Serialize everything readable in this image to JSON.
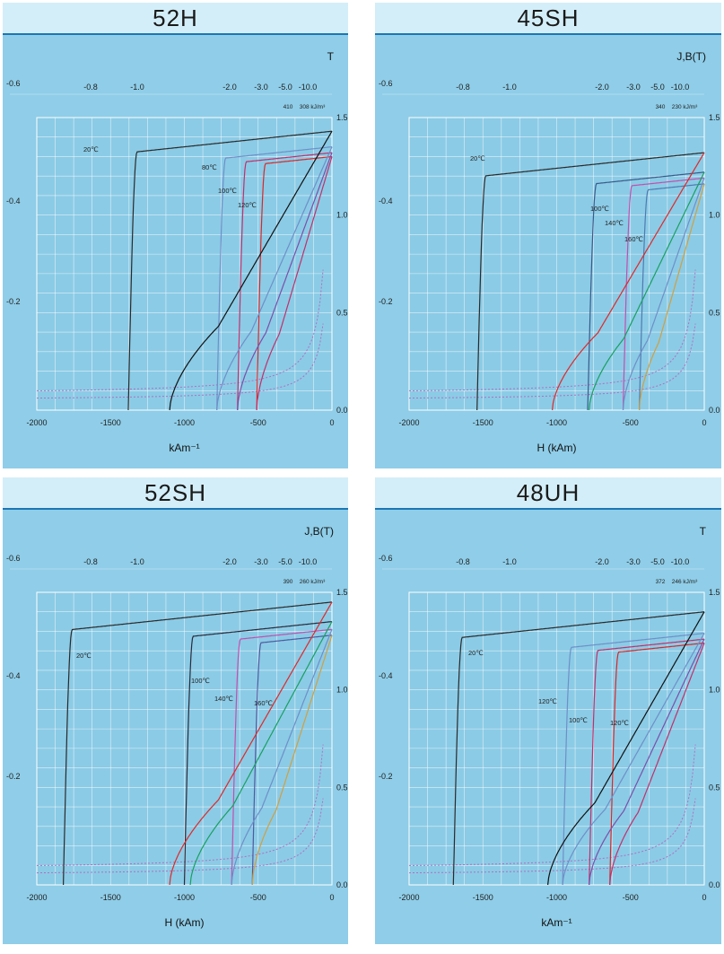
{
  "charts": [
    {
      "title": "52H",
      "unit_label": "T",
      "xlabel": "kAm⁻¹",
      "temp_labels": [
        "20℃",
        "80℃",
        "100℃",
        "120℃"
      ],
      "energy_labels": [
        "410",
        "308 kJ/m³"
      ]
    },
    {
      "title": "45SH",
      "unit_label": "J,B(T)",
      "xlabel": "H (kAm)",
      "temp_labels": [
        "20℃",
        "100℃",
        "140℃",
        "160℃"
      ],
      "energy_labels": [
        "340",
        "230 kJ/m³"
      ]
    },
    {
      "title": "52SH",
      "unit_label": "J,B(T)",
      "xlabel": "H (kAm)",
      "temp_labels": [
        "20℃",
        "100℃",
        "140℃",
        "160℃"
      ],
      "energy_labels": [
        "390",
        "260 kJ/m³"
      ]
    },
    {
      "title": "48UH",
      "unit_label": "T",
      "xlabel": "kAm⁻¹",
      "temp_labels": [
        "20℃",
        "120℃",
        "100℃",
        "120℃"
      ],
      "energy_labels": [
        "372",
        "246 kJ/m³"
      ]
    }
  ],
  "axes": {
    "x_ticks": [
      "-2000",
      "-1500",
      "-1000",
      "-500",
      "0"
    ],
    "right_ticks": [
      "0.0",
      "0.5",
      "1.0",
      "1.5"
    ],
    "left_ticks": [
      "-0.6",
      "-0.4",
      "-0.2"
    ],
    "top_ticks": [
      "-0.8",
      "-1.0",
      "-2.0",
      "-3.0",
      "-5.0",
      "-10.0"
    ]
  },
  "chart_data": [
    {
      "type": "line",
      "title": "52H",
      "xlabel": "kAm⁻¹",
      "ylabel": "T",
      "xlim": [
        -2000,
        0
      ],
      "ylim": [
        0,
        1.5
      ],
      "grid": true,
      "series": [
        {
          "name": "20℃",
          "color": "#2a2a2a",
          "kind": "J",
          "Br": 1.43,
          "Hc": -1380,
          "slope": 8e-05
        },
        {
          "name": "80℃",
          "color": "#6f8fc8",
          "kind": "J",
          "Br": 1.35,
          "Hc": -780,
          "slope": 8e-05
        },
        {
          "name": "100℃",
          "color": "#c0306c",
          "kind": "J",
          "Br": 1.32,
          "Hc": -640,
          "slope": 8e-05
        },
        {
          "name": "120℃",
          "color": "#d82828",
          "kind": "J",
          "Br": 1.3,
          "Hc": -510,
          "slope": 8e-05
        },
        {
          "name": "B 20℃",
          "color": "#111111",
          "kind": "B",
          "Br": 1.43,
          "Hc": -1100
        },
        {
          "name": "B 80℃",
          "color": "#6f8fc8",
          "kind": "B",
          "Br": 1.35,
          "Hc": -780
        },
        {
          "name": "B 100℃",
          "color": "#7b4faa",
          "kind": "B",
          "Br": 1.32,
          "Hc": -640
        },
        {
          "name": "B 120℃",
          "color": "#c0306c",
          "kind": "B",
          "Br": 1.3,
          "Hc": -510
        }
      ],
      "energy_lines": [
        {
          "label": "410",
          "color": "#b070c0",
          "k": 0.12,
          "off": 0
        },
        {
          "label": "308 kJ/m³",
          "color": "#b070c0",
          "k": 0.09,
          "off": 0
        }
      ]
    },
    {
      "type": "line",
      "title": "45SH",
      "xlabel": "H (kAm)",
      "ylabel": "J,B(T)",
      "xlim": [
        -2000,
        0
      ],
      "ylim": [
        0,
        1.5
      ],
      "grid": true,
      "series": [
        {
          "name": "20℃",
          "color": "#2a2a2a",
          "kind": "J",
          "Br": 1.32,
          "Hc": -1540,
          "slope": 8e-05
        },
        {
          "name": "100℃",
          "color": "#3a5a8a",
          "kind": "J",
          "Br": 1.22,
          "Hc": -790,
          "slope": 8e-05
        },
        {
          "name": "140℃",
          "color": "#c050b0",
          "kind": "J",
          "Br": 1.19,
          "Hc": -550,
          "slope": 8e-05
        },
        {
          "name": "160℃",
          "color": "#4f7ab0",
          "kind": "J",
          "Br": 1.16,
          "Hc": -440,
          "slope": 8e-05
        },
        {
          "name": "B 20℃",
          "color": "#e02828",
          "kind": "B",
          "Br": 1.32,
          "Hc": -1030
        },
        {
          "name": "B 100℃",
          "color": "#18a060",
          "kind": "B",
          "Br": 1.22,
          "Hc": -780
        },
        {
          "name": "B 140℃",
          "color": "#6f8fc8",
          "kind": "B",
          "Br": 1.19,
          "Hc": -550
        },
        {
          "name": "B 160℃",
          "color": "#d0a040",
          "kind": "B",
          "Br": 1.16,
          "Hc": -440
        }
      ],
      "energy_lines": [
        {
          "label": "340",
          "color": "#b070c0",
          "k": 0.12,
          "off": 0
        },
        {
          "label": "230 kJ/m³",
          "color": "#b070c0",
          "k": 0.09,
          "off": 0
        }
      ]
    },
    {
      "type": "line",
      "title": "52SH",
      "xlabel": "H (kAm)",
      "ylabel": "J,B(T)",
      "xlim": [
        -2000,
        0
      ],
      "ylim": [
        0,
        1.5
      ],
      "grid": true,
      "series": [
        {
          "name": "20℃",
          "color": "#2a2a2a",
          "kind": "J",
          "Br": 1.45,
          "Hc": -1820,
          "slope": 8e-05
        },
        {
          "name": "100℃",
          "color": "#2a2a3a",
          "kind": "J",
          "Br": 1.35,
          "Hc": -1000,
          "slope": 8e-05
        },
        {
          "name": "140℃",
          "color": "#c050b0",
          "kind": "J",
          "Br": 1.31,
          "Hc": -680,
          "slope": 8e-05
        },
        {
          "name": "160℃",
          "color": "#4f5aa0",
          "kind": "J",
          "Br": 1.28,
          "Hc": -540,
          "slope": 8e-05
        },
        {
          "name": "B 20℃",
          "color": "#e02828",
          "kind": "B",
          "Br": 1.45,
          "Hc": -1100
        },
        {
          "name": "B 100℃",
          "color": "#18a060",
          "kind": "B",
          "Br": 1.35,
          "Hc": -960
        },
        {
          "name": "B 140℃",
          "color": "#6f8fc8",
          "kind": "B",
          "Br": 1.31,
          "Hc": -680
        },
        {
          "name": "B 160℃",
          "color": "#d0a040",
          "kind": "B",
          "Br": 1.28,
          "Hc": -540
        }
      ],
      "energy_lines": [
        {
          "label": "390",
          "color": "#b070c0",
          "k": 0.12,
          "off": 0
        },
        {
          "label": "260 kJ/m³",
          "color": "#b070c0",
          "k": 0.09,
          "off": 0
        }
      ]
    },
    {
      "type": "line",
      "title": "48UH",
      "xlabel": "kAm⁻¹",
      "ylabel": "T",
      "xlim": [
        -2000,
        0
      ],
      "ylim": [
        0,
        1.5
      ],
      "grid": true,
      "series": [
        {
          "name": "20℃",
          "color": "#2a2a2a",
          "kind": "J",
          "Br": 1.4,
          "Hc": -1700,
          "slope": 8e-05
        },
        {
          "name": "120℃",
          "color": "#6f8fc8",
          "kind": "J",
          "Br": 1.29,
          "Hc": -960,
          "slope": 8e-05
        },
        {
          "name": "100℃",
          "color": "#c0306c",
          "kind": "J",
          "Br": 1.26,
          "Hc": -780,
          "slope": 8e-05
        },
        {
          "name": "120℃ ",
          "color": "#d82828",
          "kind": "J",
          "Br": 1.24,
          "Hc": -640,
          "slope": 8e-05
        },
        {
          "name": "B 20℃",
          "color": "#111111",
          "kind": "B",
          "Br": 1.4,
          "Hc": -1060
        },
        {
          "name": "B 120℃",
          "color": "#6f8fc8",
          "kind": "B",
          "Br": 1.29,
          "Hc": -960
        },
        {
          "name": "B 100℃",
          "color": "#7b4faa",
          "kind": "B",
          "Br": 1.26,
          "Hc": -780
        },
        {
          "name": "B 120℃ ",
          "color": "#c0306c",
          "kind": "B",
          "Br": 1.24,
          "Hc": -640
        }
      ],
      "energy_lines": [
        {
          "label": "372",
          "color": "#b070c0",
          "k": 0.12,
          "off": 0
        },
        {
          "label": "246 kJ/m³",
          "color": "#b070c0",
          "k": 0.09,
          "off": 0
        }
      ]
    }
  ]
}
